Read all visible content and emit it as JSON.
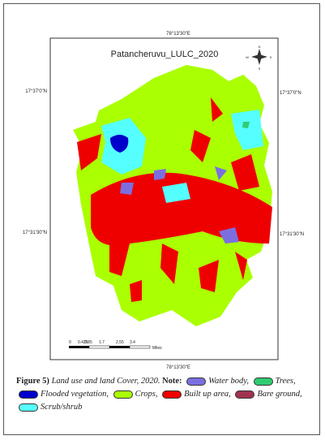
{
  "header": {
    "title": "Patancheruvu_LULC_2020"
  },
  "coords": {
    "top": "78°13'30\"E",
    "bottom": "78°13'30\"E",
    "left_top": "17°37'0\"N",
    "right_top": "17°37'0\"N",
    "left_bottom": "17°31'30\"N",
    "right_bottom": "17°31'30\"N"
  },
  "compass": {
    "n": "N",
    "e": "E",
    "s": "S",
    "w": "W"
  },
  "scale": {
    "labels": [
      "0",
      "0.425",
      "0.85",
      "1.7",
      "2.55",
      "3.4"
    ],
    "unit": "Miles"
  },
  "caption": {
    "figure": "Figure 5)",
    "text": "Land use and land Cover, 2020.",
    "note": "Note:",
    "legend": [
      {
        "label": "Water body,",
        "color": "#7b6fe0"
      },
      {
        "label": "Trees,",
        "color": "#2ecc71"
      },
      {
        "label": "Flooded vegetation,",
        "color": "#0000cc"
      },
      {
        "label": "Crops,",
        "color": "#aaff00"
      },
      {
        "label": "Built up area,",
        "color": "#ee0000"
      },
      {
        "label": "Bare ground,",
        "color": "#a0334f"
      },
      {
        "label": "Scrub/shrub",
        "color": "#55ffff"
      }
    ]
  }
}
